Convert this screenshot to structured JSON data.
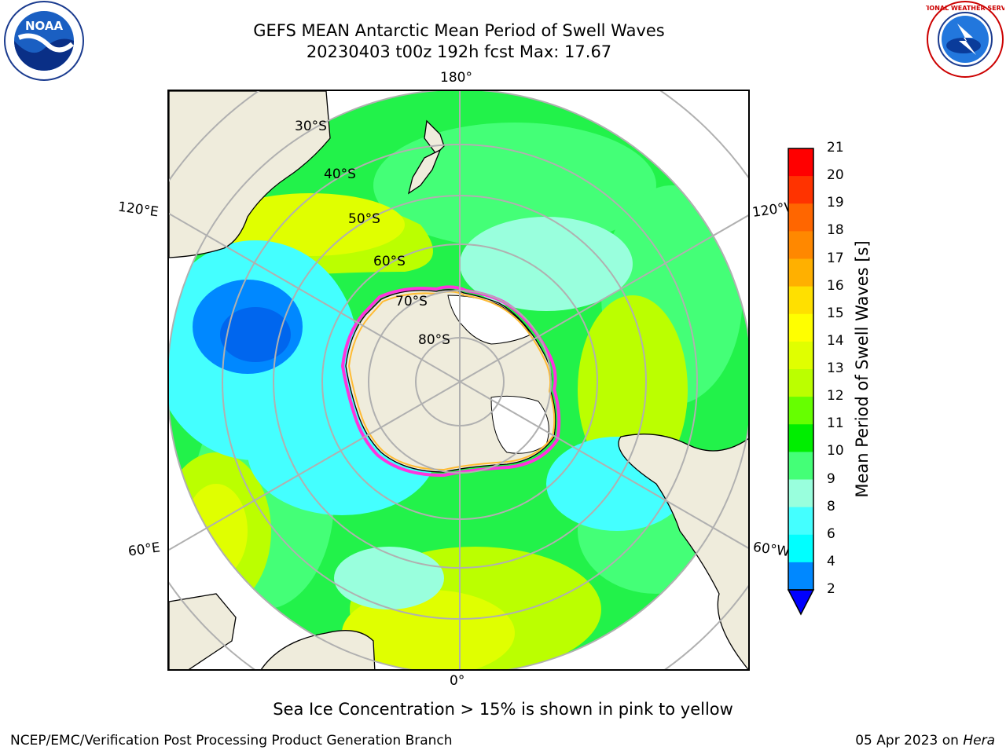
{
  "title": {
    "line1": "GEFS MEAN Antarctic Mean Period of Swell Waves",
    "line2": "20230403 t00z 192h fcst   Max: 17.67"
  },
  "logos": {
    "left": "noaa-logo",
    "right": "nws-logo",
    "left_text": "NOAA",
    "left_ring_text": "NATIONAL OCEANIC AND ATMOSPHERIC ADMINISTRATION U.S. DEPARTMENT OF COMMERCE",
    "right_ring_text": "NATIONAL WEATHER SERVICE"
  },
  "map": {
    "projection": "south-polar-stereographic",
    "longitude_labels": {
      "top": "180°",
      "bottom": "0°",
      "left_upper": "120°E",
      "right_upper": "120°W",
      "left_lower": "60°E",
      "right_lower": "60°W"
    },
    "latitude_labels": [
      "30°S",
      "40°S",
      "50°S",
      "60°S",
      "70°S",
      "80°S"
    ],
    "colors": {
      "land": "#efecdc",
      "ice_edge": "#ff33dd",
      "ice_edge_secondary": "#ff9933",
      "grid": "#b0b0b0"
    }
  },
  "colorbar": {
    "label": "Mean Period of Swell Waves [s]",
    "ticks": [
      "21",
      "20",
      "19",
      "18",
      "17",
      "16",
      "15",
      "14",
      "13",
      "12",
      "11",
      "10",
      "9",
      "8",
      "6",
      "4",
      "2"
    ],
    "bins": [
      {
        "from": 20,
        "to": 21,
        "color": "#ff0000"
      },
      {
        "from": 19,
        "to": 20,
        "color": "#ff3300"
      },
      {
        "from": 18,
        "to": 19,
        "color": "#ff6600"
      },
      {
        "from": 17,
        "to": 18,
        "color": "#ff8800"
      },
      {
        "from": 16,
        "to": 17,
        "color": "#ffb000"
      },
      {
        "from": 15,
        "to": 16,
        "color": "#ffe000"
      },
      {
        "from": 14,
        "to": 15,
        "color": "#ffff00"
      },
      {
        "from": 13,
        "to": 14,
        "color": "#e0ff00"
      },
      {
        "from": 12,
        "to": 13,
        "color": "#bbff00"
      },
      {
        "from": 11,
        "to": 12,
        "color": "#66ff00"
      },
      {
        "from": 10,
        "to": 11,
        "color": "#00ee00"
      },
      {
        "from": 9,
        "to": 10,
        "color": "#44ff77"
      },
      {
        "from": 8,
        "to": 9,
        "color": "#99ffdd"
      },
      {
        "from": 6,
        "to": 8,
        "color": "#44ffff"
      },
      {
        "from": 4,
        "to": 6,
        "color": "#00ffff"
      },
      {
        "from": 2,
        "to": 4,
        "color": "#0088ff"
      }
    ],
    "under_color": "#0000ff"
  },
  "subtitle": "Sea Ice Concentration > 15% is shown in pink to yellow",
  "footer": {
    "left": "NCEP/EMC/Verification Post Processing Product Generation Branch",
    "right_date": "05 Apr 2023 on",
    "right_machine": "Hera"
  }
}
